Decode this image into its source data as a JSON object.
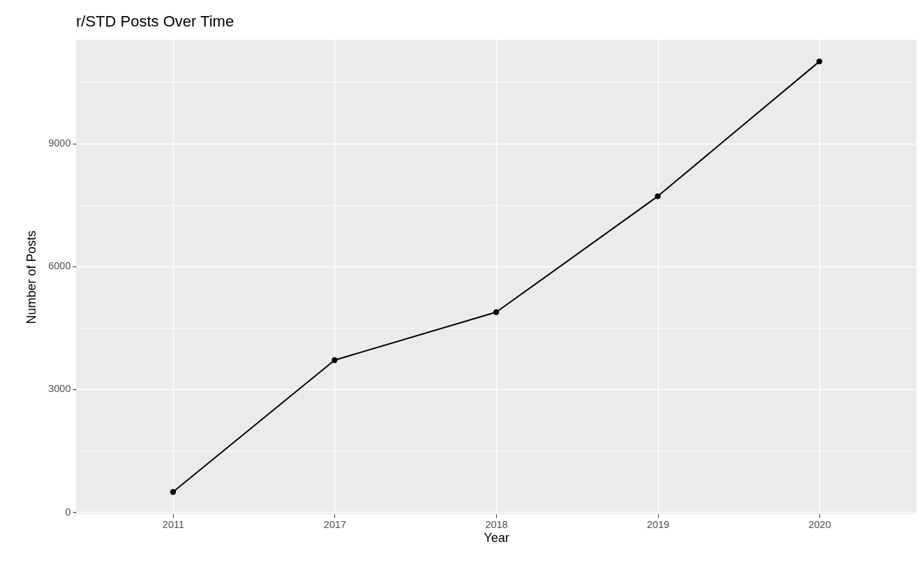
{
  "chart_data": {
    "type": "line",
    "title": "r/STD Posts Over Time",
    "xlabel": "Year",
    "ylabel": "Number of Posts",
    "categories": [
      "2011",
      "2017",
      "2018",
      "2019",
      "2020"
    ],
    "series": [
      {
        "color": "#000000",
        "values": [
          490,
          3710,
          4880,
          7710,
          11000
        ]
      }
    ],
    "ylim": [
      -50,
      11530
    ],
    "yticks": [
      0,
      {
        "value": 1500,
        "label": null
      },
      3000,
      {
        "value": 4500,
        "label": null
      },
      6000,
      {
        "value": 7500,
        "label": null
      },
      9000,
      {
        "value": 10500,
        "label": null
      }
    ],
    "grid": true,
    "marker": "circle",
    "line_style": "solid"
  }
}
